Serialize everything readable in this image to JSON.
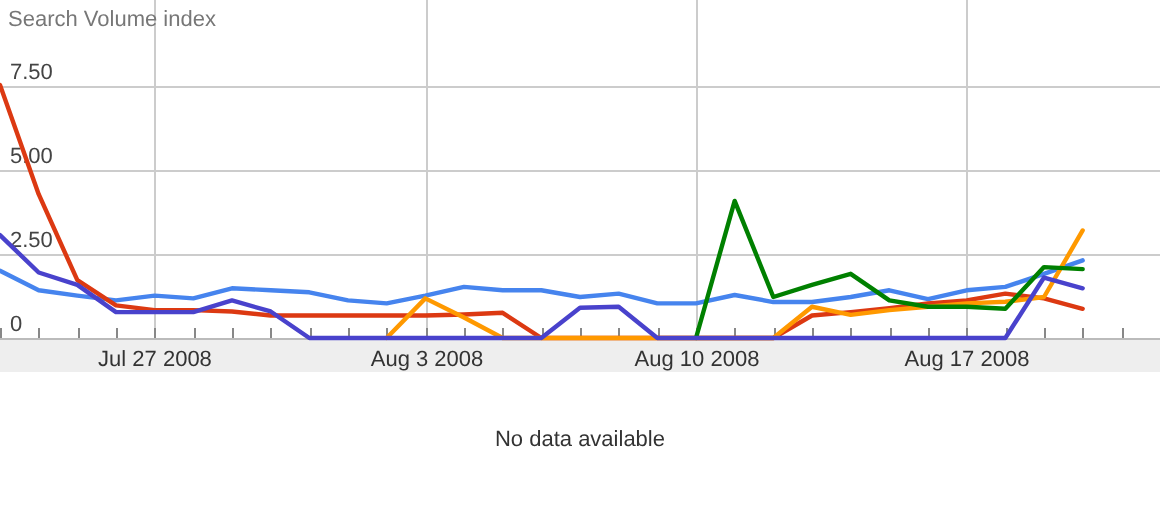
{
  "chart_data": {
    "type": "line",
    "ylabel": "Search Volume index",
    "annotations": [
      "No data available"
    ],
    "x": [
      "2008-07-23",
      "2008-07-24",
      "2008-07-25",
      "2008-07-26",
      "2008-07-27",
      "2008-07-28",
      "2008-07-29",
      "2008-07-30",
      "2008-07-31",
      "2008-08-01",
      "2008-08-02",
      "2008-08-03",
      "2008-08-04",
      "2008-08-05",
      "2008-08-06",
      "2008-08-07",
      "2008-08-08",
      "2008-08-09",
      "2008-08-10",
      "2008-08-11",
      "2008-08-12",
      "2008-08-13",
      "2008-08-14",
      "2008-08-15",
      "2008-08-16",
      "2008-08-17",
      "2008-08-18",
      "2008-08-19",
      "2008-08-20"
    ],
    "xlim": [
      "2008-07-23",
      "2008-08-22"
    ],
    "xticks": [
      {
        "value": "2008-07-23",
        "label": null
      },
      {
        "value": "2008-07-24",
        "label": null
      },
      {
        "value": "2008-07-25",
        "label": null
      },
      {
        "value": "2008-07-26",
        "label": null
      },
      {
        "value": "2008-07-27",
        "label": "Jul 27 2008"
      },
      {
        "value": "2008-07-28",
        "label": null
      },
      {
        "value": "2008-07-29",
        "label": null
      },
      {
        "value": "2008-07-30",
        "label": null
      },
      {
        "value": "2008-07-31",
        "label": null
      },
      {
        "value": "2008-08-01",
        "label": null
      },
      {
        "value": "2008-08-02",
        "label": null
      },
      {
        "value": "2008-08-03",
        "label": "Aug 3 2008"
      },
      {
        "value": "2008-08-04",
        "label": null
      },
      {
        "value": "2008-08-05",
        "label": null
      },
      {
        "value": "2008-08-06",
        "label": null
      },
      {
        "value": "2008-08-07",
        "label": null
      },
      {
        "value": "2008-08-08",
        "label": null
      },
      {
        "value": "2008-08-09",
        "label": null
      },
      {
        "value": "2008-08-10",
        "label": "Aug 10 2008"
      },
      {
        "value": "2008-08-11",
        "label": null
      },
      {
        "value": "2008-08-12",
        "label": null
      },
      {
        "value": "2008-08-13",
        "label": null
      },
      {
        "value": "2008-08-14",
        "label": null
      },
      {
        "value": "2008-08-15",
        "label": null
      },
      {
        "value": "2008-08-16",
        "label": null
      },
      {
        "value": "2008-08-17",
        "label": "Aug 17 2008"
      },
      {
        "value": "2008-08-18",
        "label": null
      },
      {
        "value": "2008-08-19",
        "label": null
      },
      {
        "value": "2008-08-20",
        "label": null
      },
      {
        "value": "2008-08-21",
        "label": null
      }
    ],
    "ylim": [
      0,
      10
    ],
    "yticks": [
      0,
      {
        "value": 2.5,
        "label": "2.50"
      },
      {
        "value": 5,
        "label": "5.00"
      },
      {
        "value": 7.5,
        "label": "7.50"
      }
    ],
    "grid": true,
    "marker": "none",
    "line_style": "solid",
    "series": [
      {
        "color": "#4684ee",
        "values": [
          2.0,
          1.42,
          1.26,
          1.12,
          1.26,
          1.18,
          1.48,
          1.42,
          1.36,
          1.12,
          1.03,
          1.26,
          1.52,
          1.42,
          1.42,
          1.22,
          1.32,
          1.03,
          1.03,
          1.28,
          1.07,
          1.07,
          1.22,
          1.42,
          1.16,
          1.42,
          1.52,
          1.91,
          2.31
        ]
      },
      {
        "color": "#dc3912",
        "values": [
          7.53,
          4.28,
          1.72,
          0.97,
          0.83,
          0.83,
          0.79,
          0.67,
          0.67,
          0.67,
          0.67,
          0.67,
          0.7,
          0.75,
          0,
          0,
          0,
          0,
          0,
          0,
          0,
          0.67,
          0.77,
          0.89,
          1.03,
          1.12,
          1.32,
          1.18,
          0.87
        ]
      },
      {
        "color": "#ff9900",
        "values": [
          null,
          null,
          null,
          null,
          null,
          null,
          null,
          null,
          null,
          null,
          0,
          1.18,
          0.61,
          0,
          0,
          0,
          0,
          0,
          0,
          0,
          0,
          0.93,
          0.69,
          0.83,
          0.93,
          1.03,
          1.08,
          1.22,
          3.2
        ]
      },
      {
        "color": "#008000",
        "values": [
          null,
          null,
          null,
          null,
          null,
          null,
          null,
          null,
          null,
          null,
          null,
          null,
          null,
          null,
          null,
          null,
          null,
          null,
          0,
          4.08,
          1.22,
          1.58,
          1.91,
          1.12,
          0.93,
          0.93,
          0.87,
          2.11,
          2.05
        ]
      },
      {
        "color": "#4942cc",
        "values": [
          3.06,
          1.95,
          1.58,
          0.77,
          0.77,
          0.77,
          1.12,
          0.79,
          0,
          0,
          0,
          0,
          0,
          0,
          0,
          0.9,
          0.93,
          0,
          0,
          0,
          0,
          0,
          0,
          0,
          0,
          0,
          0,
          1.8,
          1.48
        ]
      }
    ]
  }
}
